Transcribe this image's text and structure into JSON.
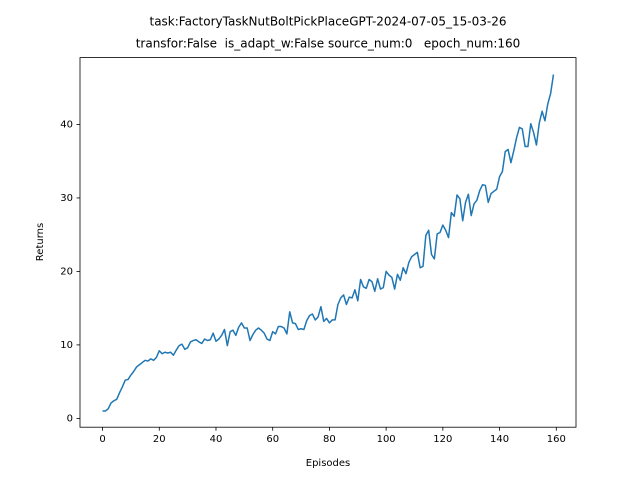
{
  "chart_data": {
    "type": "line",
    "title": "task:FactoryTaskNutBoltPickPlaceGPT-2024-07-05_15-03-26",
    "subtitle": "transfor:False  is_adapt_w:False source_num:0   epoch_num:160",
    "x_label": "Episodes",
    "y_label": "Returns",
    "color": "#1f77b4",
    "grid": false,
    "x": [
      0,
      1,
      2,
      3,
      4,
      5,
      6,
      7,
      8,
      9,
      10,
      11,
      12,
      13,
      14,
      15,
      16,
      17,
      18,
      19,
      20,
      21,
      22,
      23,
      24,
      25,
      26,
      27,
      28,
      29,
      30,
      31,
      32,
      33,
      34,
      35,
      36,
      37,
      38,
      39,
      40,
      41,
      42,
      43,
      44,
      45,
      46,
      47,
      48,
      49,
      50,
      51,
      52,
      53,
      54,
      55,
      56,
      57,
      58,
      59,
      60,
      61,
      62,
      63,
      64,
      65,
      66,
      67,
      68,
      69,
      70,
      71,
      72,
      73,
      74,
      75,
      76,
      77,
      78,
      79,
      80,
      81,
      82,
      83,
      84,
      85,
      86,
      87,
      88,
      89,
      90,
      91,
      92,
      93,
      94,
      95,
      96,
      97,
      98,
      99,
      100,
      101,
      102,
      103,
      104,
      105,
      106,
      107,
      108,
      109,
      110,
      111,
      112,
      113,
      114,
      115,
      116,
      117,
      118,
      119,
      120,
      121,
      122,
      123,
      124,
      125,
      126,
      127,
      128,
      129,
      130,
      131,
      132,
      133,
      134,
      135,
      136,
      137,
      138,
      139,
      140,
      141,
      142,
      143,
      144,
      145,
      146,
      147,
      148,
      149,
      150,
      151,
      152,
      153,
      154,
      155,
      156,
      157,
      158,
      159
    ],
    "values": [
      1.0,
      1.0,
      1.3,
      2.1,
      2.4,
      2.6,
      3.5,
      4.3,
      5.2,
      5.3,
      5.9,
      6.4,
      7.0,
      7.3,
      7.6,
      7.9,
      7.8,
      8.1,
      7.9,
      8.3,
      9.2,
      8.8,
      9.0,
      8.9,
      9.0,
      8.6,
      9.3,
      9.9,
      10.1,
      9.4,
      9.6,
      10.4,
      10.6,
      10.7,
      10.4,
      10.2,
      10.8,
      10.6,
      10.7,
      11.6,
      10.5,
      10.8,
      11.3,
      12.1,
      9.9,
      11.8,
      12.0,
      11.3,
      12.4,
      13.0,
      12.3,
      12.3,
      10.6,
      11.4,
      12.0,
      12.3,
      12.0,
      11.6,
      10.8,
      10.6,
      11.8,
      11.5,
      12.5,
      12.5,
      12.3,
      11.5,
      14.5,
      13.0,
      12.9,
      12.1,
      12.2,
      12.1,
      13.3,
      14.0,
      14.2,
      13.4,
      13.8,
      15.2,
      13.2,
      13.6,
      13.0,
      13.4,
      13.4,
      15.5,
      16.4,
      16.8,
      15.5,
      16.5,
      16.4,
      17.5,
      16.0,
      18.9,
      17.9,
      17.7,
      18.9,
      18.6,
      17.3,
      19.0,
      17.6,
      17.8,
      20.0,
      19.5,
      19.2,
      17.6,
      19.6,
      18.8,
      20.5,
      19.7,
      21.2,
      22.0,
      22.3,
      22.6,
      20.5,
      20.7,
      24.9,
      25.6,
      22.3,
      21.7,
      25.1,
      25.3,
      26.3,
      25.6,
      24.6,
      28.0,
      27.5,
      30.4,
      29.9,
      26.9,
      29.4,
      30.5,
      27.6,
      29.2,
      29.7,
      31.0,
      31.8,
      31.7,
      29.4,
      30.6,
      30.9,
      31.2,
      32.9,
      33.6,
      36.3,
      36.6,
      34.8,
      36.4,
      38.2,
      39.6,
      39.4,
      37.0,
      37.0,
      40.1,
      38.9,
      37.2,
      40.2,
      41.8,
      40.5,
      42.8,
      44.2,
      46.8
    ],
    "xlim": [
      -7.95,
      166.95
    ],
    "xticks": [
      0,
      20,
      40,
      60,
      80,
      100,
      120,
      140,
      160
    ],
    "ylim": [
      -1.2,
      49.1
    ],
    "yticks": [
      0,
      10,
      20,
      30,
      40
    ]
  }
}
